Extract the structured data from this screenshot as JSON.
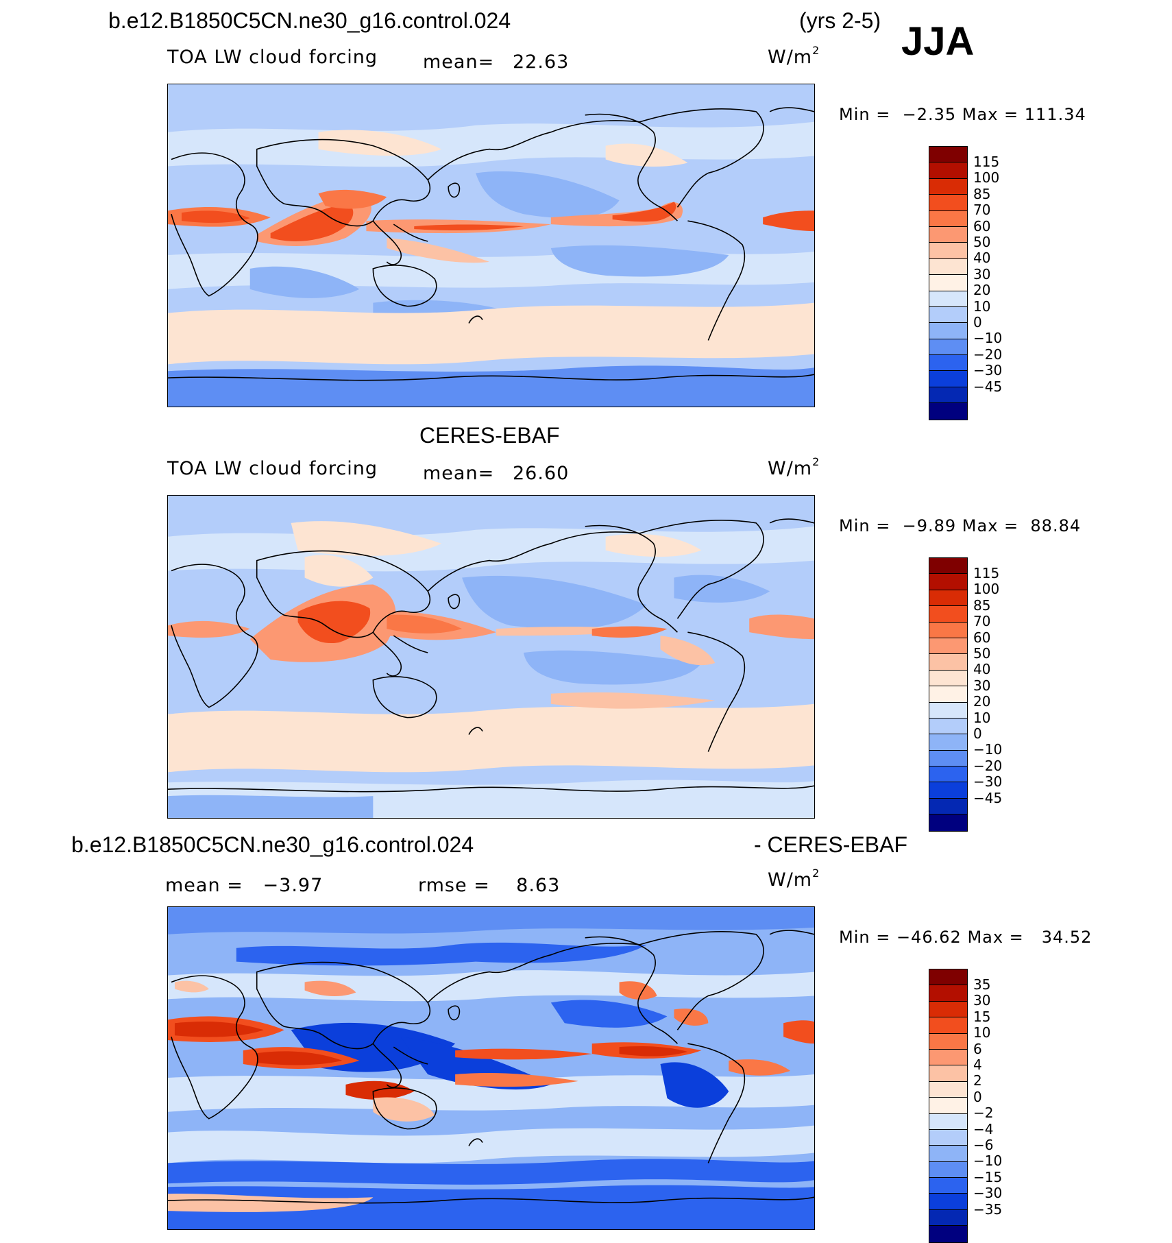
{
  "header": {
    "case_name": "b.e12.B1850C5CN.ne30_g16.control.024",
    "years": "(yrs 2-5)",
    "season": "JJA"
  },
  "panels": [
    {
      "id": "model",
      "variable": "TOA LW cloud forcing",
      "mean_label": "mean=",
      "mean_value": "22.63",
      "units_base": "W/m",
      "units_exp": "2",
      "min_label": "Min =",
      "min_value": "−2.35",
      "max_label": "Max =",
      "max_value": "111.34",
      "colorbar_labels": [
        "115",
        "100",
        "85",
        "70",
        "60",
        "50",
        "40",
        "30",
        "20",
        "10",
        "0",
        "−10",
        "−20",
        "−30",
        "−45"
      ],
      "colorbar_colors": [
        "#7f0000",
        "#b30f00",
        "#d92c05",
        "#f24e1e",
        "#fa7746",
        "#fc9872",
        "#fcc2a5",
        "#fde4d2",
        "#fff2e6",
        "#d6e6fb",
        "#b3cdfa",
        "#8eb4f7",
        "#5e8ef3",
        "#2c63ef",
        "#0b3fdb",
        "#0428b3",
        "#00007f"
      ]
    },
    {
      "id": "obs",
      "title": "CERES-EBAF",
      "variable": "TOA LW cloud forcing",
      "mean_label": "mean=",
      "mean_value": "26.60",
      "units_base": "W/m",
      "units_exp": "2",
      "min_label": "Min =",
      "min_value": "−9.89",
      "max_label": "Max =",
      "max_value": "88.84",
      "colorbar_labels": [
        "115",
        "100",
        "85",
        "70",
        "60",
        "50",
        "40",
        "30",
        "20",
        "10",
        "0",
        "−10",
        "−20",
        "−30",
        "−45"
      ],
      "colorbar_colors": [
        "#7f0000",
        "#b30f00",
        "#d92c05",
        "#f24e1e",
        "#fa7746",
        "#fc9872",
        "#fcc2a5",
        "#fde4d2",
        "#fff2e6",
        "#d6e6fb",
        "#b3cdfa",
        "#8eb4f7",
        "#5e8ef3",
        "#2c63ef",
        "#0b3fdb",
        "#0428b3",
        "#00007f"
      ]
    },
    {
      "id": "diff",
      "title_left": "b.e12.B1850C5CN.ne30_g16.control.024",
      "title_right": "- CERES-EBAF",
      "mean_label": "mean =",
      "mean_value": "−3.97",
      "rmse_label": "rmse =",
      "rmse_value": "8.63",
      "units_base": "W/m",
      "units_exp": "2",
      "min_label": "Min =",
      "min_value": "−46.62",
      "max_label": "Max =",
      "max_value": "34.52",
      "colorbar_labels": [
        "35",
        "30",
        "15",
        "10",
        "6",
        "4",
        "2",
        "0",
        "−2",
        "−4",
        "−6",
        "−10",
        "−15",
        "−30",
        "−35"
      ],
      "colorbar_colors": [
        "#7f0000",
        "#b30f00",
        "#d92c05",
        "#f24e1e",
        "#fa7746",
        "#fc9872",
        "#fcc2a5",
        "#fde4d2",
        "#fff2e6",
        "#d6e6fb",
        "#b3cdfa",
        "#8eb4f7",
        "#5e8ef3",
        "#2c63ef",
        "#0b3fdb",
        "#0428b3",
        "#00007f"
      ]
    }
  ],
  "colors": {
    "ocean_base": "#b3cdfa",
    "ocean_mid": "#8eb4f7",
    "warm_band": "#fde4d2",
    "strong_warm": "#f24e1e",
    "hot": "#d92c05",
    "deep_blue": "#2c63ef",
    "coastline": "#000000"
  }
}
